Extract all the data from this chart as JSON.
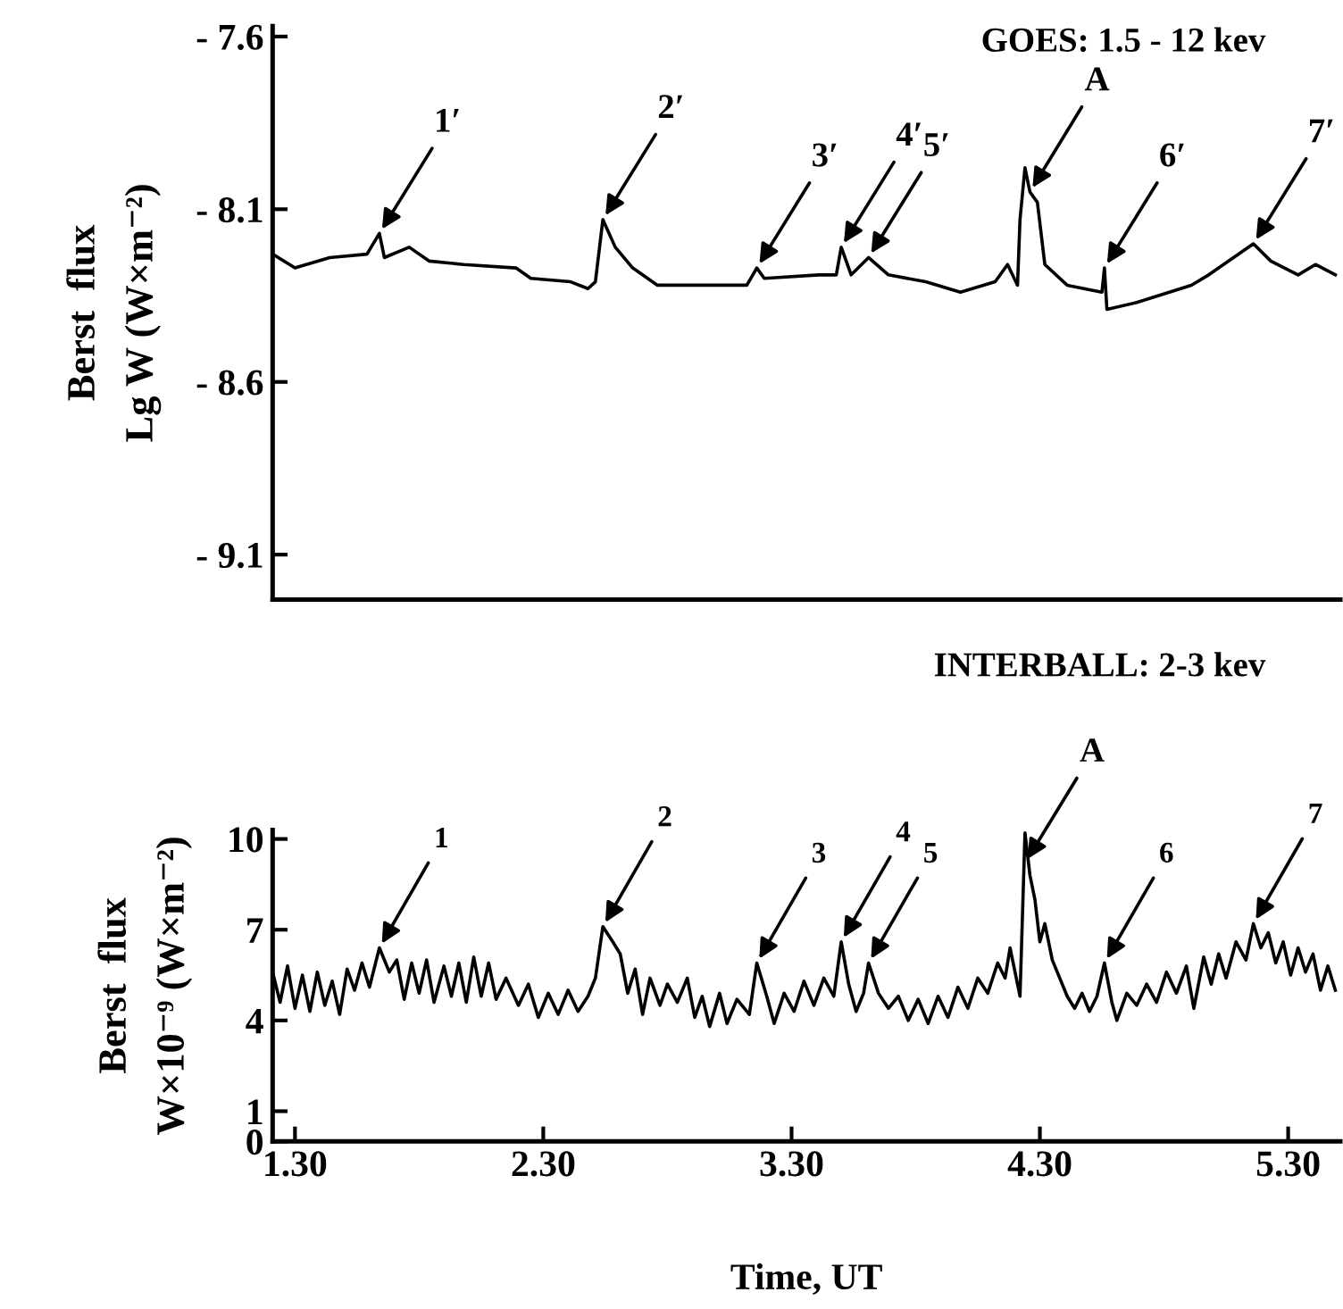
{
  "chart_data": [
    {
      "type": "line",
      "title": "GOES: 1.5 - 12 kev",
      "ylabel": "Berst  flux\nLg W (W×m⁻²)",
      "xlim": [
        1.21,
        5.51
      ],
      "ylim": [
        -9.23,
        -7.57
      ],
      "yticks": [
        {
          "value": -7.6,
          "label": "- 7.6"
        },
        {
          "value": -8.1,
          "label": "- 8.1"
        },
        {
          "value": -8.6,
          "label": "- 8.6"
        },
        {
          "value": -9.1,
          "label": "- 9.1"
        }
      ],
      "tick_labels": "y",
      "grid": false,
      "marker": "none",
      "line_style": "solid",
      "series": [
        {
          "color": "#000000",
          "x": [
            1.21,
            1.3,
            1.44,
            1.59,
            1.64,
            1.66,
            1.76,
            1.84,
            1.98,
            2.19,
            2.25,
            2.41,
            2.48,
            2.51,
            2.54,
            2.59,
            2.66,
            2.76,
            2.98,
            3.12,
            3.16,
            3.19,
            3.41,
            3.48,
            3.5,
            3.54,
            3.61,
            3.69,
            3.84,
            3.98,
            4.12,
            4.17,
            4.21,
            4.22,
            4.24,
            4.26,
            4.29,
            4.32,
            4.41,
            4.55,
            4.56,
            4.57,
            4.69,
            4.91,
            4.98,
            5.16,
            5.23,
            5.34,
            5.41,
            5.49
          ],
          "values": [
            -8.23,
            -8.27,
            -8.24,
            -8.23,
            -8.17,
            -8.24,
            -8.21,
            -8.25,
            -8.26,
            -8.27,
            -8.3,
            -8.31,
            -8.33,
            -8.31,
            -8.13,
            -8.21,
            -8.27,
            -8.32,
            -8.32,
            -8.32,
            -8.27,
            -8.3,
            -8.29,
            -8.29,
            -8.21,
            -8.29,
            -8.24,
            -8.29,
            -8.31,
            -8.34,
            -8.31,
            -8.26,
            -8.32,
            -8.13,
            -7.98,
            -8.05,
            -8.08,
            -8.26,
            -8.32,
            -8.34,
            -8.27,
            -8.39,
            -8.37,
            -8.32,
            -8.29,
            -8.2,
            -8.25,
            -8.29,
            -8.26,
            -8.29
          ]
        }
      ],
      "annotations": [
        {
          "text": "1′",
          "x": 1.64,
          "y": -8.17
        },
        {
          "text": "2′",
          "x": 2.54,
          "y": -8.13
        },
        {
          "text": "3′",
          "x": 3.16,
          "y": -8.27
        },
        {
          "text": "4′",
          "x": 3.5,
          "y": -8.21
        },
        {
          "text": "5′",
          "x": 3.61,
          "y": -8.24
        },
        {
          "text": "A",
          "x": 4.26,
          "y": -8.05
        },
        {
          "text": "6′",
          "x": 4.56,
          "y": -8.27
        },
        {
          "text": "7′",
          "x": 5.16,
          "y": -8.2
        }
      ]
    },
    {
      "type": "line",
      "title": "INTERBALL: 2-3 kev",
      "xlabel": "Time, UT",
      "ylabel": "Berst  flux\nW×10⁻⁹ (W×m⁻²)",
      "xlim": [
        1.21,
        5.51
      ],
      "ylim": [
        0,
        10.3
      ],
      "xticks": [
        {
          "value": 1.3,
          "label": "1.30"
        },
        {
          "value": 2.3,
          "label": "2.30"
        },
        {
          "value": 3.3,
          "label": "3.30"
        },
        {
          "value": 4.3,
          "label": "4.30"
        },
        {
          "value": 5.3,
          "label": "5.30"
        }
      ],
      "yticks": [
        0,
        1,
        4,
        7,
        10
      ],
      "grid": false,
      "marker": "none",
      "line_style": "solid",
      "series": [
        {
          "color": "#000000",
          "x": [
            1.21,
            1.24,
            1.27,
            1.3,
            1.33,
            1.36,
            1.39,
            1.42,
            1.45,
            1.48,
            1.51,
            1.54,
            1.57,
            1.6,
            1.64,
            1.68,
            1.71,
            1.74,
            1.77,
            1.8,
            1.83,
            1.86,
            1.9,
            1.93,
            1.96,
            1.99,
            2.02,
            2.05,
            2.08,
            2.11,
            2.15,
            2.2,
            2.24,
            2.28,
            2.32,
            2.36,
            2.4,
            2.44,
            2.48,
            2.51,
            2.54,
            2.58,
            2.61,
            2.64,
            2.67,
            2.7,
            2.73,
            2.77,
            2.8,
            2.84,
            2.88,
            2.91,
            2.94,
            2.97,
            3.01,
            3.04,
            3.08,
            3.13,
            3.16,
            3.2,
            3.23,
            3.27,
            3.31,
            3.35,
            3.39,
            3.43,
            3.47,
            3.5,
            3.53,
            3.56,
            3.59,
            3.61,
            3.65,
            3.69,
            3.73,
            3.77,
            3.81,
            3.85,
            3.89,
            3.93,
            3.97,
            4.01,
            4.05,
            4.09,
            4.13,
            4.16,
            4.18,
            4.2,
            4.22,
            4.24,
            4.26,
            4.28,
            4.3,
            4.32,
            4.35,
            4.38,
            4.41,
            4.44,
            4.47,
            4.5,
            4.53,
            4.56,
            4.59,
            4.61,
            4.65,
            4.69,
            4.73,
            4.77,
            4.81,
            4.85,
            4.89,
            4.92,
            4.96,
            4.99,
            5.02,
            5.05,
            5.09,
            5.13,
            5.16,
            5.19,
            5.22,
            5.25,
            5.28,
            5.31,
            5.34,
            5.37,
            5.4,
            5.43,
            5.46,
            5.49
          ],
          "values": [
            5.6,
            4.6,
            5.8,
            4.4,
            5.5,
            4.3,
            5.6,
            4.5,
            5.3,
            4.2,
            5.7,
            5.0,
            5.9,
            5.1,
            6.4,
            5.6,
            6.0,
            4.7,
            5.9,
            4.9,
            6.0,
            4.6,
            5.8,
            4.8,
            5.9,
            4.6,
            6.1,
            4.8,
            5.9,
            4.7,
            5.4,
            4.5,
            5.2,
            4.1,
            4.9,
            4.2,
            5.0,
            4.3,
            4.8,
            5.4,
            7.1,
            6.6,
            6.2,
            4.9,
            5.7,
            4.2,
            5.4,
            4.5,
            5.2,
            4.6,
            5.4,
            4.1,
            4.8,
            3.8,
            4.9,
            3.9,
            4.7,
            4.2,
            5.9,
            4.8,
            3.9,
            4.9,
            4.3,
            5.3,
            4.5,
            5.4,
            4.8,
            6.6,
            5.2,
            4.3,
            4.9,
            5.9,
            4.9,
            4.4,
            4.8,
            4.0,
            4.7,
            3.9,
            4.8,
            4.1,
            5.1,
            4.4,
            5.4,
            4.9,
            5.9,
            5.4,
            6.4,
            5.6,
            4.8,
            10.2,
            8.8,
            8.0,
            6.6,
            7.2,
            6.0,
            5.4,
            4.8,
            4.4,
            4.9,
            4.3,
            4.8,
            5.9,
            4.6,
            4.0,
            4.9,
            4.5,
            5.2,
            4.6,
            5.6,
            4.9,
            5.8,
            4.4,
            6.1,
            5.2,
            6.2,
            5.4,
            6.6,
            6.0,
            7.2,
            6.4,
            6.9,
            5.9,
            6.6,
            5.5,
            6.4,
            5.6,
            6.2,
            5.0,
            5.8,
            5.0
          ]
        }
      ],
      "annotations": [
        {
          "text": "1",
          "x": 1.64,
          "y": 6.4
        },
        {
          "text": "2",
          "x": 2.54,
          "y": 7.1
        },
        {
          "text": "3",
          "x": 3.16,
          "y": 5.9
        },
        {
          "text": "4",
          "x": 3.5,
          "y": 6.6
        },
        {
          "text": "5",
          "x": 3.61,
          "y": 5.9
        },
        {
          "text": "A",
          "x": 4.24,
          "y": 9.2
        },
        {
          "text": "6",
          "x": 4.56,
          "y": 5.9
        },
        {
          "text": "7",
          "x": 5.16,
          "y": 7.2
        }
      ]
    }
  ]
}
